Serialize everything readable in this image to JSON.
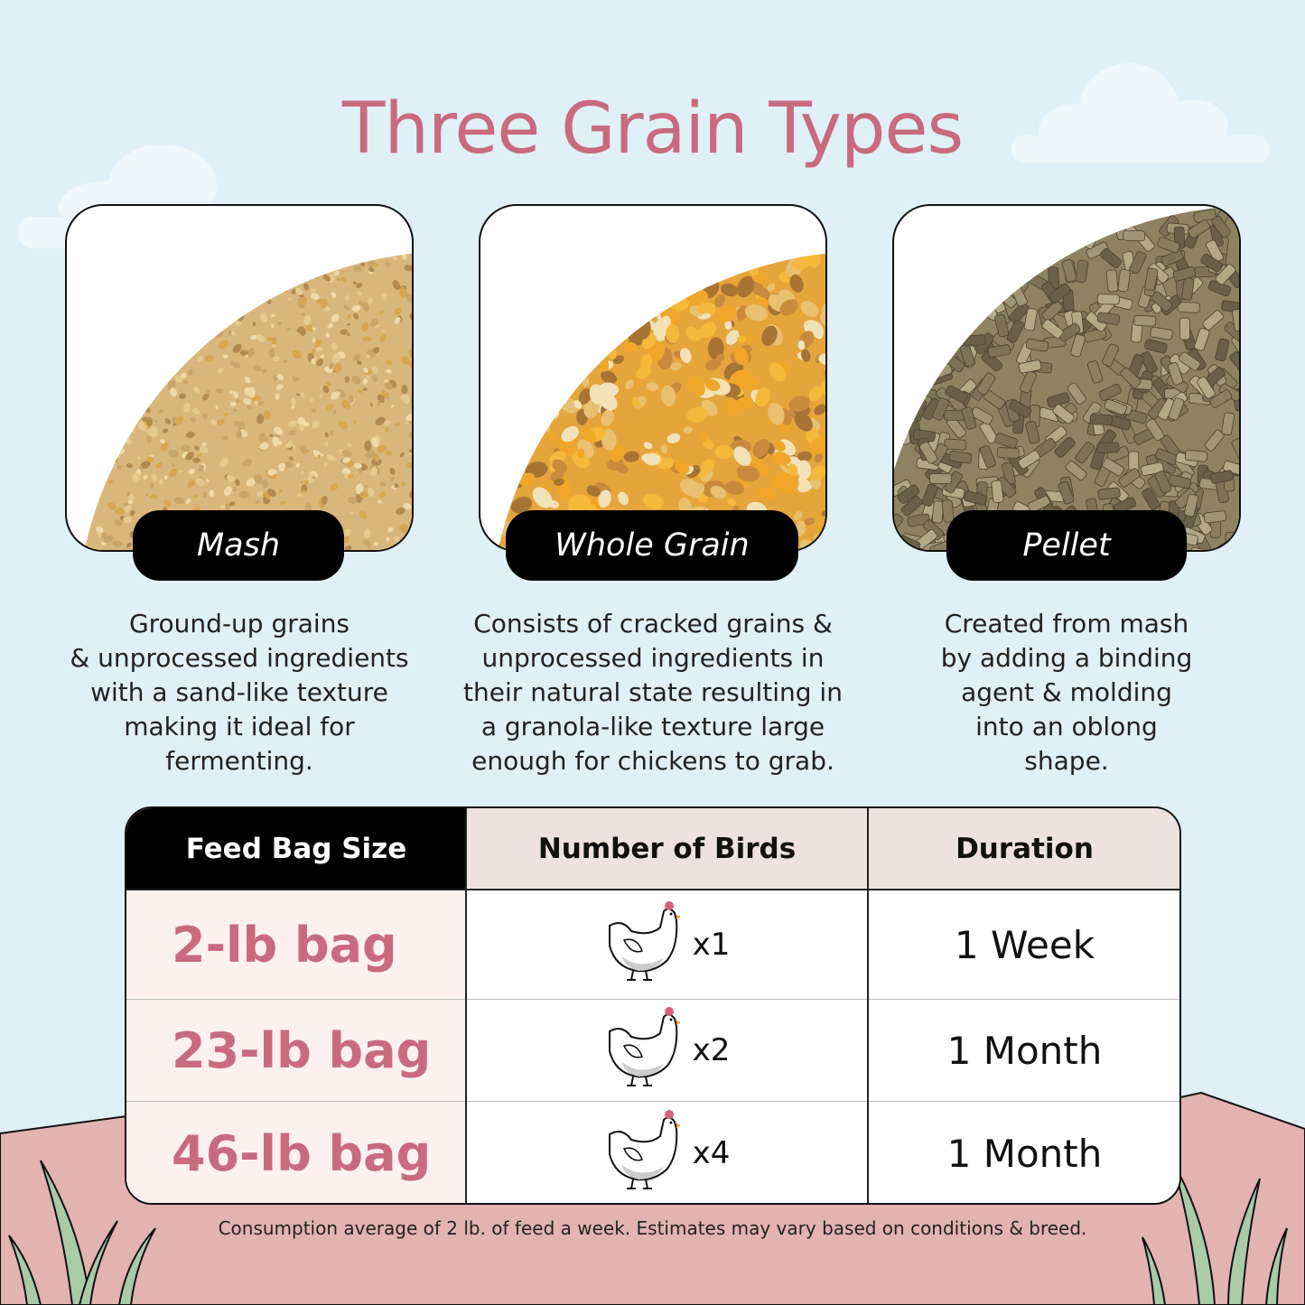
{
  "title": "Three Grain Types",
  "colors": {
    "background": "#dff0f6",
    "accent": "#c96a7e",
    "hill": "#e3b3b0",
    "grass": "#a9cba8"
  },
  "grains": [
    {
      "name": "Mash",
      "description": [
        "Ground-up grains",
        "& unprocessed ingredients",
        "with a sand-like texture",
        "making it ideal for",
        "fermenting."
      ],
      "color": "#d9b77c"
    },
    {
      "name": "Whole Grain",
      "description": [
        "Consists of cracked grains &",
        "unprocessed ingredients in",
        "their natural state resulting in",
        "a granola-like texture large",
        "enough for chickens to grab."
      ],
      "color": "#e5a53b"
    },
    {
      "name": "Pellet",
      "description": [
        "Created from mash",
        "by adding a binding",
        "agent & molding",
        "into an oblong",
        "shape."
      ],
      "color": "#8f8262"
    }
  ],
  "table": {
    "headers": [
      "Feed Bag Size",
      "Number of Birds",
      "Duration"
    ],
    "rows": [
      {
        "size": "2-lb bag",
        "birds": "x1",
        "duration": "1 Week",
        "icon": "chicken-icon"
      },
      {
        "size": "23-lb bag",
        "birds": "x2",
        "duration": "1 Month",
        "icon": "chicken-icon"
      },
      {
        "size": "46-lb bag",
        "birds": "x4",
        "duration": "1 Month",
        "icon": "chicken-icon"
      }
    ]
  },
  "footnote": "Consumption average of 2 lb. of feed a week. Estimates may vary based on conditions & breed."
}
